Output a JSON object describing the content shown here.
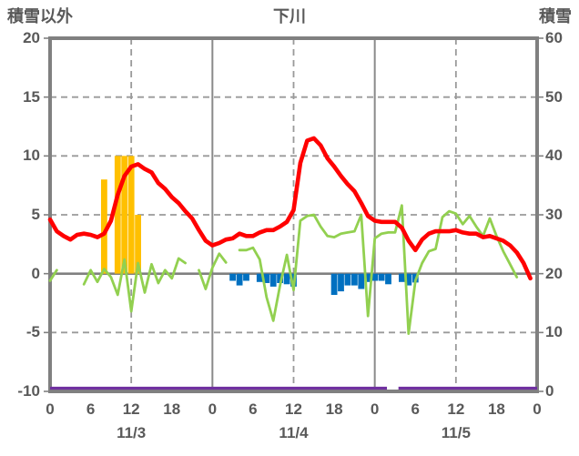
{
  "header": {
    "left_axis_title": "積雪以外",
    "chart_title": "下川",
    "right_axis_title": "積雪"
  },
  "chart_data": {
    "type": "line+bar",
    "title": "下川",
    "x_unit": "hour",
    "x_range": [
      0,
      72
    ],
    "left_axis": {
      "title": "積雪以外",
      "min": -10,
      "max": 20,
      "ticks": [
        20,
        15,
        10,
        5,
        0,
        -5,
        -10
      ]
    },
    "right_axis": {
      "title": "積雪",
      "min": 0,
      "max": 60,
      "ticks": [
        60,
        50,
        40,
        30,
        20,
        10,
        0
      ]
    },
    "x_ticks": {
      "hours": [
        0,
        6,
        12,
        18,
        24,
        30,
        36,
        42,
        48,
        54,
        60,
        66,
        72
      ],
      "labels": [
        "0",
        "6",
        "12",
        "18",
        "0",
        "6",
        "12",
        "18",
        "0",
        "6",
        "12",
        "18",
        "0"
      ]
    },
    "day_labels": [
      {
        "hour": 12,
        "label": "11/3"
      },
      {
        "hour": 36,
        "label": "11/4"
      },
      {
        "hour": 60,
        "label": "11/5"
      }
    ],
    "gridlines": {
      "horizontal_dashed_values": [
        15,
        10,
        5,
        -5
      ],
      "zero_line_value": 0,
      "vertical_dashed_hours": [
        12,
        36,
        60
      ],
      "vertical_solid_hours": [
        24,
        48
      ]
    },
    "colors": {
      "red_line": "#ff0000",
      "green_line": "#92d050",
      "orange_bars": "#ffc000",
      "blue_bars": "#0070c0",
      "purple_line": "#7030a0",
      "grid": "#9a9a9a",
      "border": "#808080",
      "text": "#595959"
    },
    "series": [
      {
        "name": "red-line",
        "type": "line",
        "axis": "left",
        "values": [
          4.6,
          3.6,
          3.2,
          2.9,
          3.3,
          3.4,
          3.3,
          3.1,
          3.4,
          4.5,
          6.7,
          8.3,
          9.1,
          9.3,
          8.9,
          8.6,
          7.7,
          7.2,
          6.5,
          6.0,
          5.3,
          4.7,
          3.7,
          2.8,
          2.4,
          2.6,
          2.9,
          3.0,
          3.4,
          3.2,
          3.2,
          3.5,
          3.7,
          3.7,
          4.0,
          4.4,
          5.4,
          9.4,
          11.3,
          11.5,
          10.9,
          9.8,
          9.1,
          8.3,
          7.6,
          7.0,
          6.0,
          4.9,
          4.5,
          4.4,
          4.4,
          4.4,
          3.9,
          2.8,
          2.0,
          2.9,
          3.4,
          3.6,
          3.6,
          3.6,
          3.7,
          3.5,
          3.4,
          3.4,
          3.1,
          3.2,
          3.0,
          2.8,
          2.4,
          1.8,
          0.9,
          -0.4
        ]
      },
      {
        "name": "green-line",
        "type": "line",
        "axis": "left",
        "values": [
          -0.6,
          0.3,
          null,
          null,
          null,
          -0.9,
          0.3,
          -0.7,
          0.4,
          -0.3,
          -1.8,
          1.2,
          -3.2,
          0.9,
          -1.6,
          0.8,
          -0.8,
          0.3,
          -0.4,
          1.3,
          0.9,
          null,
          0.3,
          -1.3,
          0.5,
          1.7,
          0.95,
          null,
          2.0,
          2.0,
          2.2,
          1.2,
          -2.0,
          -4.0,
          -1.0,
          1.6,
          -1.4,
          4.5,
          4.9,
          5.0,
          4.0,
          3.2,
          3.1,
          3.4,
          3.5,
          3.6,
          5.0,
          -3.6,
          3.0,
          3.4,
          3.5,
          3.5,
          5.8,
          -5.1,
          -0.6,
          0.9,
          1.9,
          2.1,
          4.8,
          5.3,
          5.1,
          4.2,
          4.9,
          4.0,
          3.2,
          4.7,
          3.2,
          1.9,
          0.8,
          -0.3
        ]
      },
      {
        "name": "orange-bars",
        "type": "bar",
        "axis": "left",
        "bars": [
          {
            "hour": 8,
            "value": 8
          },
          {
            "hour": 10,
            "value": 10
          },
          {
            "hour": 11,
            "value": 10
          },
          {
            "hour": 12,
            "value": 10
          },
          {
            "hour": 13,
            "value": 5
          }
        ]
      },
      {
        "name": "blue-bars",
        "type": "bar",
        "axis": "left",
        "bars": [
          {
            "hour": 27,
            "value": -0.6
          },
          {
            "hour": 28,
            "value": -1.0
          },
          {
            "hour": 29,
            "value": -0.6
          },
          {
            "hour": 31,
            "value": -0.7
          },
          {
            "hour": 32,
            "value": -0.8
          },
          {
            "hour": 33,
            "value": -1.1
          },
          {
            "hour": 34,
            "value": -0.8
          },
          {
            "hour": 35,
            "value": -0.9
          },
          {
            "hour": 36,
            "value": -1.1
          },
          {
            "hour": 42,
            "value": -1.8
          },
          {
            "hour": 43,
            "value": -1.5
          },
          {
            "hour": 44,
            "value": -1.0
          },
          {
            "hour": 45,
            "value": -1.0
          },
          {
            "hour": 46,
            "value": -1.3
          },
          {
            "hour": 47,
            "value": -0.7
          },
          {
            "hour": 48,
            "value": -0.6
          },
          {
            "hour": 49,
            "value": -0.6
          },
          {
            "hour": 50,
            "value": -0.9
          },
          {
            "hour": 52,
            "value": -0.7
          },
          {
            "hour": 53,
            "value": -1.0
          },
          {
            "hour": 54,
            "value": -0.75
          }
        ]
      },
      {
        "name": "purple-line",
        "type": "line",
        "axis": "right",
        "segments": [
          {
            "from_hour": 0,
            "to_hour": 49.8,
            "value": 0
          },
          {
            "from_hour": 51.5,
            "to_hour": 72,
            "value": 0
          }
        ]
      }
    ]
  }
}
